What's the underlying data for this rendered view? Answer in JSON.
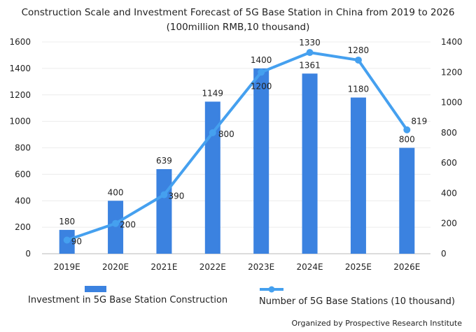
{
  "chart_data": {
    "type": "bar+line",
    "title": "Construction Scale and Investment Forecast of 5G Base Station in China from 2019 to 2026",
    "subtitle": "(100million RMB,10 thousand)",
    "categories": [
      "2019E",
      "2020E",
      "2021E",
      "2022E",
      "2023E",
      "2024E",
      "2025E",
      "2026E"
    ],
    "series": [
      {
        "name": "Investment in 5G Base Station Construction",
        "type": "bar",
        "axis": "left",
        "color": "#3b82e0",
        "values": [
          180,
          400,
          639,
          1149,
          1400,
          1361,
          1180,
          800
        ]
      },
      {
        "name": "Number of 5G Base Stations (10 thousand)",
        "type": "line",
        "axis": "right",
        "color": "#45a0ef",
        "values": [
          90,
          200,
          390,
          800,
          1200,
          1330,
          1280,
          819
        ]
      }
    ],
    "left_axis": {
      "range": [
        0,
        1600
      ],
      "ticks": [
        0,
        200,
        400,
        600,
        800,
        1000,
        1200,
        1400,
        1600
      ]
    },
    "right_axis": {
      "range": [
        0,
        1400
      ],
      "ticks": [
        0,
        200,
        400,
        600,
        800,
        1000,
        1200,
        1400
      ]
    },
    "grid": true,
    "legend_placement": "bottom",
    "footnote": "Organized by Prospective Research Institute"
  }
}
